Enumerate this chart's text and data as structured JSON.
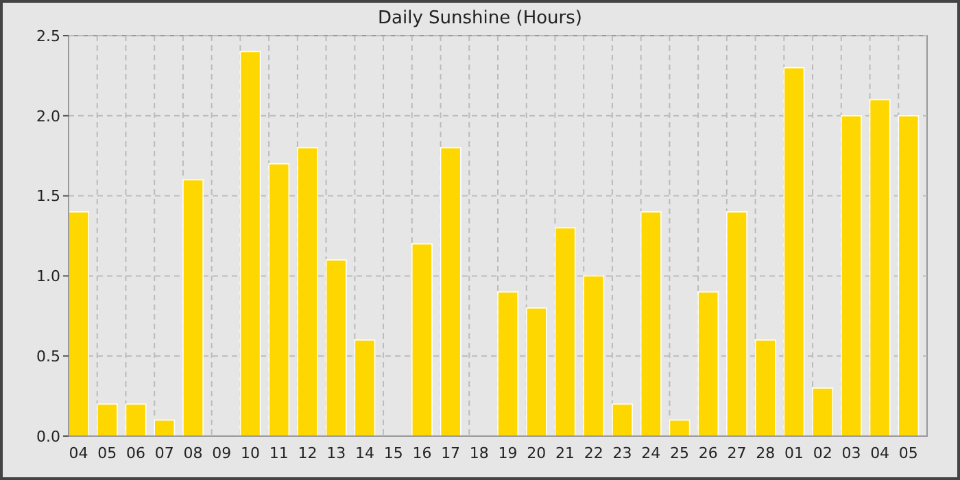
{
  "chart_data": {
    "type": "bar",
    "title": "Daily Sunshine (Hours)",
    "categories": [
      "04",
      "05",
      "06",
      "07",
      "08",
      "09",
      "10",
      "11",
      "12",
      "13",
      "14",
      "15",
      "16",
      "17",
      "18",
      "19",
      "20",
      "21",
      "22",
      "23",
      "24",
      "25",
      "26",
      "27",
      "28",
      "01",
      "02",
      "03",
      "04",
      "05"
    ],
    "values": [
      1.4,
      0.2,
      0.2,
      0.1,
      1.6,
      0,
      2.4,
      1.7,
      1.8,
      1.1,
      0.6,
      0,
      1.2,
      1.8,
      0,
      0.9,
      0.8,
      1.3,
      1.0,
      0.2,
      1.4,
      0.1,
      0.9,
      1.4,
      0.6,
      2.3,
      0.3,
      2.0,
      2.1,
      2.0
    ],
    "color": "#ffd700",
    "ylim": [
      0,
      2.5
    ],
    "yticks": [
      {
        "value": 0,
        "label": "0.0"
      },
      {
        "value": 0.5,
        "label": "0.5"
      },
      {
        "value": 1,
        "label": "1.0"
      },
      {
        "value": 1.5,
        "label": "1.5"
      },
      {
        "value": 2,
        "label": "2.0"
      },
      {
        "value": 2.5,
        "label": "2.5"
      }
    ],
    "grid": true
  }
}
